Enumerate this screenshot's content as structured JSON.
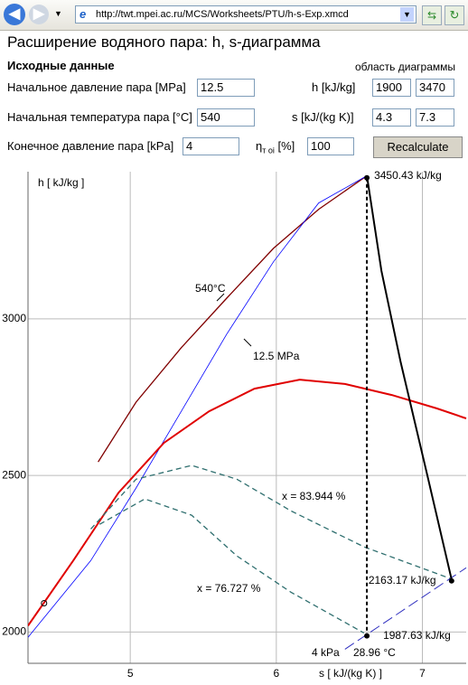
{
  "browser": {
    "url": "http://twt.mpei.ac.ru/MCS/Worksheets/PTU/h-s-Exp.xmcd"
  },
  "header": {
    "title": "Расширение водяного пара: h, s-диаграмма",
    "section": "Исходные данные",
    "range_title": "область диаграммы"
  },
  "form": {
    "p1": {
      "label": "Начальное давление пара [MPa]",
      "value": "12.5"
    },
    "t1": {
      "label": "Начальная температура пара [°C]",
      "value": "540"
    },
    "p2": {
      "label": "Конечное давление пара [kPa]",
      "value": "4"
    },
    "eta": {
      "symbol": "η",
      "subscript": "т oi",
      "unit": "[%]",
      "value": "100"
    },
    "h_range": {
      "label": "h [kJ/kg]",
      "min": "1900",
      "max": "3470"
    },
    "s_range": {
      "label": "s [kJ/(kg K)]",
      "min": "4.3",
      "max": "7.3"
    },
    "button": "Recalculate"
  },
  "chart_data": {
    "type": "line",
    "x_label": "s [ kJ/(kg K) ]",
    "y_label": "h [ kJ/kg ]",
    "xlim": [
      4.3,
      7.3
    ],
    "ylim": [
      1900,
      3470
    ],
    "xticks": [
      5,
      6,
      7
    ],
    "yticks": [
      2000,
      2500,
      3000
    ],
    "grid": true,
    "series": [
      {
        "name": "540°C",
        "color": "#800000",
        "x": [
          4.78,
          5.04,
          5.35,
          5.66,
          5.98,
          6.29,
          6.62
        ],
        "values": [
          2543,
          2734,
          2908,
          3066,
          3225,
          3350,
          3457
        ]
      },
      {
        "name": "12.5 MPa",
        "color": "#0000ff",
        "x": [
          4.3,
          4.73,
          5.04,
          5.35,
          5.66,
          5.98,
          6.29,
          6.62
        ],
        "values": [
          1983,
          2228,
          2460,
          2705,
          2951,
          3182,
          3370,
          3457
        ]
      },
      {
        "color": "#e00000",
        "x": [
          4.3,
          4.61,
          4.92,
          5.23,
          5.54,
          5.85,
          6.16,
          6.47,
          6.79,
          7.1,
          7.3
        ],
        "values": [
          2020,
          2228,
          2445,
          2604,
          2705,
          2777,
          2806,
          2792,
          2757,
          2714,
          2682
        ]
      },
      {
        "name": "x = 83.944 %",
        "color": "#2f6f6f",
        "x": [
          4.73,
          5.04,
          5.42,
          5.73,
          6.1,
          6.6,
          7.19
        ],
        "values": [
          2329,
          2488,
          2532,
          2488,
          2387,
          2272,
          2171
        ]
      },
      {
        "name": "x = 76.727 %",
        "color": "#2f6f6f",
        "x": [
          4.79,
          5.1,
          5.42,
          5.73,
          6.1,
          6.6
        ],
        "values": [
          2344,
          2425,
          2373,
          2243,
          2127,
          1997
        ]
      },
      {
        "name": "4 kPa",
        "color": "#3030c0",
        "x": [
          6.47,
          7.3
        ],
        "values": [
          1945,
          2205
        ]
      },
      {
        "color": "#000000",
        "x": [
          6.62,
          6.72,
          6.85,
          7.04,
          7.2
        ],
        "values": [
          3457,
          3153,
          2864,
          2488,
          2168
        ]
      }
    ],
    "points": [
      {
        "x": 6.62,
        "y": 3450.43,
        "label": "3450.43 kJ/kg"
      },
      {
        "x": 7.2,
        "y": 2163.17,
        "label": "2163.17 kJ/kg"
      },
      {
        "x": 6.62,
        "y": 1987.63,
        "label": "1987.63 kJ/kg"
      }
    ],
    "start_point": {
      "x": 4.41,
      "y": 2092
    },
    "annotation": "28.96 °C"
  }
}
